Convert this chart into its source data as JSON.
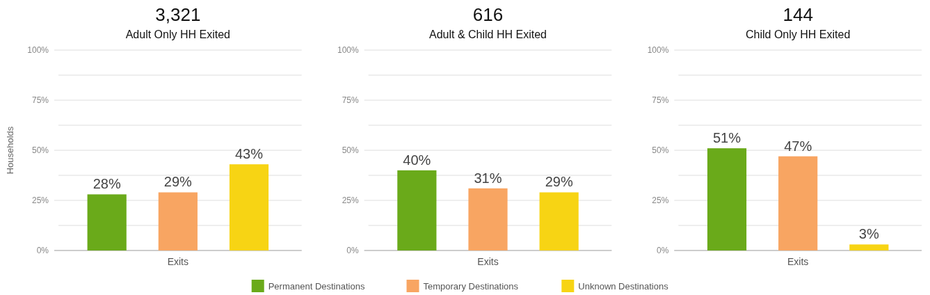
{
  "chart_data": [
    {
      "type": "bar",
      "title": "3,321",
      "subtitle": "Adult Only HH Exited",
      "ylabel": "Households",
      "categories": [
        "Exits"
      ],
      "ylim": [
        0,
        100
      ],
      "yticks": [
        {
          "value": 0,
          "label": "0%"
        },
        {
          "value": 12.5,
          "label": null
        },
        {
          "value": 25,
          "label": "25%"
        },
        {
          "value": 37.5,
          "label": null
        },
        {
          "value": 50,
          "label": "50%"
        },
        {
          "value": 62.5,
          "label": null
        },
        {
          "value": 75,
          "label": "75%"
        },
        {
          "value": 87.5,
          "label": null
        },
        {
          "value": 100,
          "label": "100%"
        }
      ],
      "grid": "y",
      "series": [
        {
          "color": "#6aaa1a",
          "values": [
            28
          ],
          "value_labels": [
            "28%"
          ]
        },
        {
          "color": "#f8a562",
          "values": [
            29
          ],
          "value_labels": [
            "29%"
          ]
        },
        {
          "color": "#f7d414",
          "values": [
            43
          ],
          "value_labels": [
            "43%"
          ]
        }
      ]
    },
    {
      "type": "bar",
      "title": "616",
      "subtitle": "Adult & Child HH Exited",
      "categories": [
        "Exits"
      ],
      "ylim": [
        0,
        100
      ],
      "yticks": [
        {
          "value": 0,
          "label": "0%"
        },
        {
          "value": 12.5,
          "label": null
        },
        {
          "value": 25,
          "label": "25%"
        },
        {
          "value": 37.5,
          "label": null
        },
        {
          "value": 50,
          "label": "50%"
        },
        {
          "value": 62.5,
          "label": null
        },
        {
          "value": 75,
          "label": "75%"
        },
        {
          "value": 87.5,
          "label": null
        },
        {
          "value": 100,
          "label": "100%"
        }
      ],
      "grid": "y",
      "legend": "bottom",
      "series": [
        {
          "name": "Permanent Destinations",
          "color": "#6aaa1a",
          "values": [
            40
          ],
          "value_labels": [
            "40%"
          ]
        },
        {
          "name": "Temporary Destinations",
          "color": "#f8a562",
          "values": [
            31
          ],
          "value_labels": [
            "31%"
          ]
        },
        {
          "name": "Unknown Destinations",
          "color": "#f7d414",
          "values": [
            29
          ],
          "value_labels": [
            "29%"
          ]
        }
      ]
    },
    {
      "type": "bar",
      "title": "144",
      "subtitle": "Child Only HH Exited",
      "categories": [
        "Exits"
      ],
      "ylim": [
        0,
        100
      ],
      "yticks": [
        {
          "value": 0,
          "label": "0%"
        },
        {
          "value": 12.5,
          "label": null
        },
        {
          "value": 25,
          "label": "25%"
        },
        {
          "value": 37.5,
          "label": null
        },
        {
          "value": 50,
          "label": "50%"
        },
        {
          "value": 62.5,
          "label": null
        },
        {
          "value": 75,
          "label": "75%"
        },
        {
          "value": 87.5,
          "label": null
        },
        {
          "value": 100,
          "label": "100%"
        }
      ],
      "grid": "y",
      "series": [
        {
          "color": "#6aaa1a",
          "values": [
            51
          ],
          "value_labels": [
            "51%"
          ]
        },
        {
          "color": "#f8a562",
          "values": [
            47
          ],
          "value_labels": [
            "47%"
          ]
        },
        {
          "color": "#f7d414",
          "values": [
            3
          ],
          "value_labels": [
            "3%"
          ]
        }
      ]
    }
  ]
}
